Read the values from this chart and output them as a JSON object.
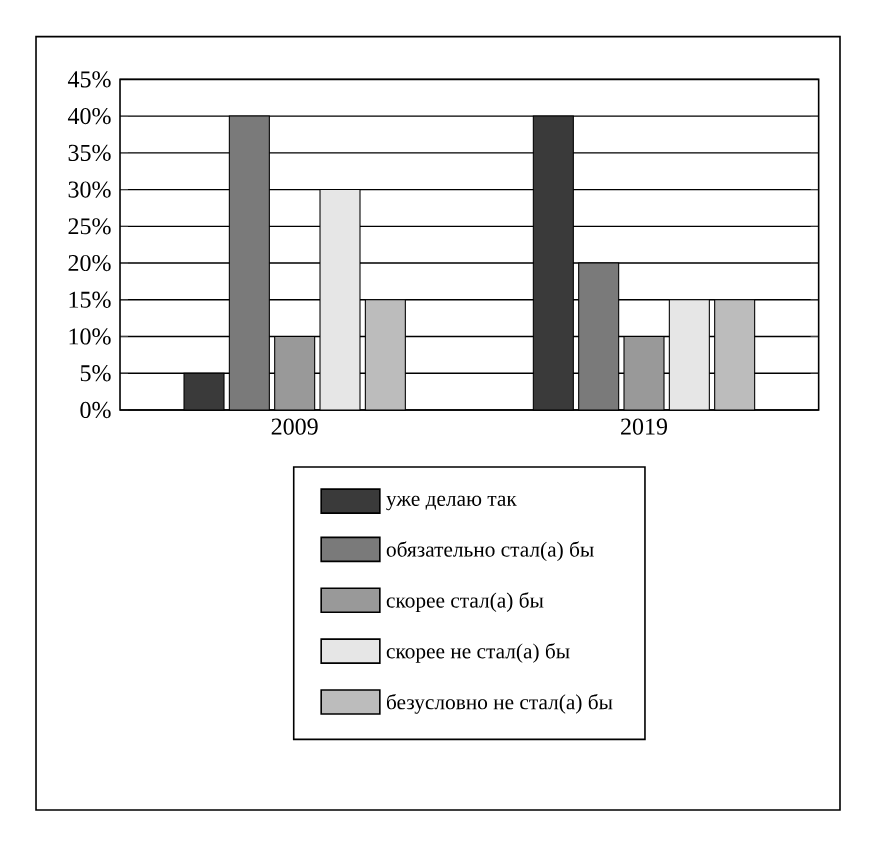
{
  "chart_data": {
    "type": "bar",
    "categories": [
      "2009",
      "2019"
    ],
    "series": [
      {
        "name": "уже делаю так",
        "color": "#3a3a3a",
        "values": [
          5,
          40
        ]
      },
      {
        "name": "обязательно стал(а) бы",
        "color": "#7a7a7a",
        "values": [
          40,
          20
        ]
      },
      {
        "name": "скорее стал(а) бы",
        "color": "#999999",
        "values": [
          10,
          10
        ]
      },
      {
        "name": "скорее не стал(а) бы",
        "color": "#e6e6e6",
        "values": [
          30,
          15
        ]
      },
      {
        "name": "безусловно не стал(а) бы",
        "color": "#bcbcbc",
        "values": [
          15,
          15
        ]
      }
    ],
    "ylim": [
      0,
      45
    ],
    "yticks": [
      {
        "value": 0,
        "label": "0%"
      },
      {
        "value": 5,
        "label": "5%"
      },
      {
        "value": 10,
        "label": "10%"
      },
      {
        "value": 15,
        "label": "15%"
      },
      {
        "value": 20,
        "label": "20%"
      },
      {
        "value": 25,
        "label": "25%"
      },
      {
        "value": 30,
        "label": "30%"
      },
      {
        "value": 35,
        "label": "35%"
      },
      {
        "value": 40,
        "label": "40%"
      },
      {
        "value": 45,
        "label": "45%"
      }
    ],
    "grid": "y",
    "legend": "bottom"
  }
}
